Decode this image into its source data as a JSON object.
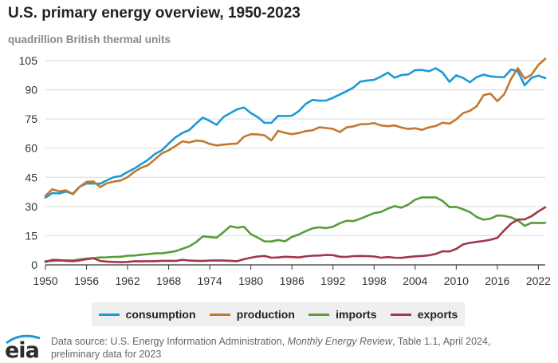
{
  "title": "U.S. primary energy overview, 1950-2023",
  "subtitle": "quadrillion British thermal units",
  "source": {
    "prefix": "Data source: U.S. Energy Information Administration, ",
    "publication": "Monthly Energy Review",
    "suffix": ", Table 1.1, April 2024,",
    "line2": "preliminary data for 2023"
  },
  "logo_text": "eia",
  "colors": {
    "consumption": "#1a9ad6",
    "production": "#c2782f",
    "imports": "#5a9b3a",
    "exports": "#a3364b",
    "grid": "#d9d9d9",
    "axis": "#333333"
  },
  "chart_data": {
    "type": "line",
    "title": "U.S. primary energy overview, 1950-2023",
    "ylabel": "quadrillion British thermal units",
    "xlabel": "",
    "xlim": [
      1950,
      2023
    ],
    "ylim": [
      0,
      105
    ],
    "y_ticks": [
      0,
      15,
      30,
      45,
      60,
      75,
      90,
      105
    ],
    "x_ticks": [
      1950,
      1956,
      1962,
      1968,
      1974,
      1980,
      1986,
      1992,
      1998,
      2004,
      2010,
      2016,
      2022
    ],
    "grid": "horizontal",
    "legend_position": "bottom",
    "x": [
      1950,
      1951,
      1952,
      1953,
      1954,
      1955,
      1956,
      1957,
      1958,
      1959,
      1960,
      1961,
      1962,
      1963,
      1964,
      1965,
      1966,
      1967,
      1968,
      1969,
      1970,
      1971,
      1972,
      1973,
      1974,
      1975,
      1976,
      1977,
      1978,
      1979,
      1980,
      1981,
      1982,
      1983,
      1984,
      1985,
      1986,
      1987,
      1988,
      1989,
      1990,
      1991,
      1992,
      1993,
      1994,
      1995,
      1996,
      1997,
      1998,
      1999,
      2000,
      2001,
      2002,
      2003,
      2004,
      2005,
      2006,
      2007,
      2008,
      2009,
      2010,
      2011,
      2012,
      2013,
      2014,
      2015,
      2016,
      2017,
      2018,
      2019,
      2020,
      2021,
      2022,
      2023
    ],
    "series": [
      {
        "name": "consumption",
        "key": "consumption",
        "values": [
          34.6,
          36.9,
          36.7,
          37.7,
          36.6,
          40.2,
          41.8,
          41.8,
          41.7,
          43.5,
          45.1,
          45.7,
          47.8,
          49.6,
          51.8,
          54.0,
          57.0,
          58.9,
          62.4,
          65.6,
          67.8,
          69.3,
          72.7,
          75.7,
          74.0,
          72.0,
          76.0,
          78.0,
          80.0,
          80.9,
          78.0,
          76.0,
          73.0,
          73.0,
          76.6,
          76.5,
          76.7,
          79.0,
          82.7,
          84.8,
          84.4,
          84.5,
          85.9,
          87.6,
          89.3,
          91.2,
          94.2,
          94.8,
          95.1,
          96.8,
          98.8,
          96.2,
          97.6,
          97.9,
          100.1,
          100.2,
          99.5,
          101.1,
          98.9,
          94.1,
          97.4,
          96.1,
          93.9,
          96.6,
          97.8,
          96.9,
          96.6,
          96.5,
          100.4,
          99.6,
          92.3,
          96.2,
          97.3,
          96.0
        ]
      },
      {
        "name": "production",
        "key": "production",
        "values": [
          35.5,
          38.9,
          37.8,
          38.3,
          36.3,
          40.1,
          42.7,
          42.9,
          40.0,
          42.0,
          42.8,
          43.4,
          45.1,
          47.9,
          49.9,
          51.3,
          54.3,
          57.3,
          58.9,
          61.1,
          63.5,
          62.9,
          63.9,
          63.6,
          62.2,
          61.4,
          61.8,
          62.2,
          62.4,
          65.9,
          67.2,
          67.1,
          66.6,
          64.0,
          68.9,
          67.9,
          67.2,
          67.8,
          68.8,
          69.2,
          70.7,
          70.4,
          69.9,
          68.3,
          70.7,
          71.2,
          72.3,
          72.4,
          72.9,
          71.7,
          71.3,
          71.7,
          70.6,
          69.9,
          70.2,
          69.4,
          70.7,
          71.4,
          73.1,
          72.6,
          74.8,
          78.0,
          79.2,
          81.6,
          87.3,
          88.0,
          84.2,
          87.7,
          95.6,
          101.1,
          95.8,
          97.8,
          102.8,
          106.0
        ]
      },
      {
        "name": "imports",
        "key": "imports",
        "values": [
          1.9,
          2.0,
          2.2,
          2.3,
          2.3,
          2.8,
          3.2,
          3.5,
          3.8,
          3.9,
          4.1,
          4.2,
          4.7,
          4.8,
          5.2,
          5.5,
          5.9,
          5.9,
          6.5,
          7.0,
          8.3,
          9.5,
          11.7,
          14.7,
          14.3,
          14.0,
          16.8,
          19.9,
          19.1,
          19.6,
          15.8,
          14.0,
          12.1,
          12.0,
          12.8,
          12.1,
          14.4,
          15.6,
          17.3,
          18.8,
          19.3,
          18.9,
          19.6,
          21.4,
          22.7,
          22.5,
          23.7,
          25.2,
          26.6,
          27.2,
          28.9,
          30.2,
          29.4,
          31.0,
          33.5,
          34.7,
          34.7,
          34.7,
          32.9,
          29.7,
          29.8,
          28.6,
          27.1,
          24.6,
          23.2,
          23.8,
          25.4,
          25.2,
          24.4,
          22.9,
          20.1,
          21.6,
          21.5,
          21.6
        ]
      },
      {
        "name": "exports",
        "key": "exports",
        "values": [
          1.5,
          2.6,
          2.4,
          2.1,
          1.9,
          2.3,
          2.9,
          3.4,
          2.0,
          1.7,
          1.5,
          1.4,
          1.5,
          1.9,
          1.8,
          1.9,
          1.9,
          2.1,
          2.1,
          2.0,
          2.6,
          2.2,
          2.1,
          2.0,
          2.2,
          2.3,
          2.2,
          2.1,
          1.9,
          2.9,
          3.7,
          4.3,
          4.6,
          3.7,
          3.8,
          4.2,
          4.0,
          3.8,
          4.4,
          4.7,
          4.8,
          5.1,
          5.0,
          4.2,
          4.1,
          4.5,
          4.6,
          4.5,
          4.3,
          3.7,
          4.0,
          3.7,
          3.6,
          4.0,
          4.4,
          4.6,
          4.9,
          5.6,
          7.0,
          6.9,
          8.2,
          10.5,
          11.3,
          11.8,
          12.3,
          12.9,
          13.9,
          17.7,
          21.2,
          23.3,
          23.4,
          25.0,
          27.5,
          29.6
        ]
      }
    ]
  },
  "legend": [
    {
      "label": "consumption",
      "key": "consumption"
    },
    {
      "label": "production",
      "key": "production"
    },
    {
      "label": "imports",
      "key": "imports"
    },
    {
      "label": "exports",
      "key": "exports"
    }
  ]
}
